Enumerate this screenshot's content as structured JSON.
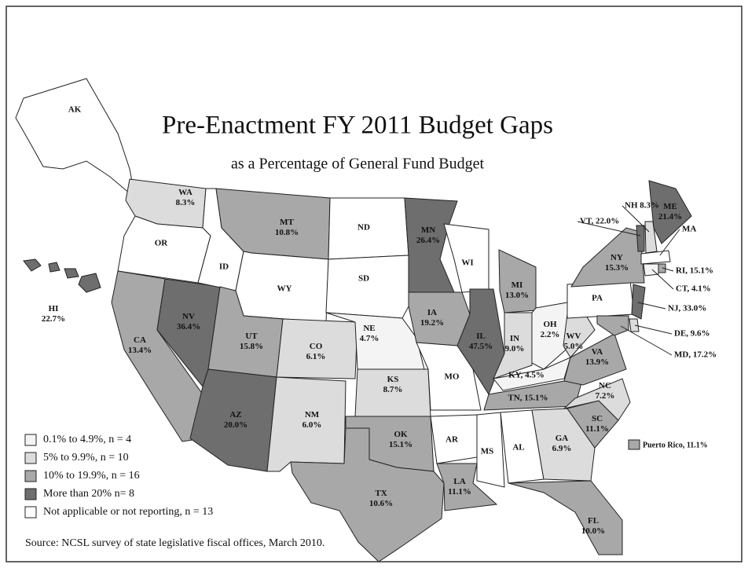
{
  "header": {
    "title": "Pre-Enactment FY 2011 Budget Gaps",
    "subtitle": "as a Percentage of General Fund Budget"
  },
  "states": [
    {
      "label": [
        "AK"
      ],
      "color": "#ffffff"
    },
    {
      "label": [
        "WA",
        "8.3%"
      ],
      "color": "#dcdcdc"
    },
    {
      "label": [
        "OR"
      ],
      "color": "#ffffff"
    },
    {
      "label": [
        "CA",
        "13.4%"
      ],
      "color": "#a8a8a8"
    },
    {
      "label": [
        "NV",
        "36.4%"
      ],
      "color": "#6e6e6e"
    },
    {
      "label": [
        "ID"
      ],
      "color": "#ffffff"
    },
    {
      "label": [
        "MT",
        "10.8%"
      ],
      "color": "#a8a8a8"
    },
    {
      "label": [
        "WY"
      ],
      "color": "#ffffff"
    },
    {
      "label": [
        "UT",
        "15.8%"
      ],
      "color": "#a8a8a8"
    },
    {
      "label": [
        "AZ",
        "20.0%"
      ],
      "color": "#6e6e6e"
    },
    {
      "label": [
        "CO",
        "6.1%"
      ],
      "color": "#dcdcdc"
    },
    {
      "label": [
        "NM",
        "6.0%"
      ],
      "color": "#dcdcdc"
    },
    {
      "label": [
        "ND"
      ],
      "color": "#ffffff"
    },
    {
      "label": [
        "SD"
      ],
      "color": "#ffffff"
    },
    {
      "label": [
        "NE",
        "4.7%"
      ],
      "color": "#f4f4f4"
    },
    {
      "label": [
        "KS",
        "8.7%"
      ],
      "color": "#dcdcdc"
    },
    {
      "label": [
        "OK",
        "15.1%"
      ],
      "color": "#a8a8a8"
    },
    {
      "label": [
        "TX",
        "10.6%"
      ],
      "color": "#a8a8a8"
    },
    {
      "label": [
        "MN",
        "26.4%"
      ],
      "color": "#6e6e6e"
    },
    {
      "label": [
        "IA",
        "19.2%"
      ],
      "color": "#a8a8a8"
    },
    {
      "label": [
        "MO"
      ],
      "color": "#ffffff"
    },
    {
      "label": [
        "AR"
      ],
      "color": "#ffffff"
    },
    {
      "label": [
        "LA",
        "11.1%"
      ],
      "color": "#a8a8a8"
    },
    {
      "label": [
        "WI"
      ],
      "color": "#ffffff"
    },
    {
      "label": [
        "IL",
        "47.5%"
      ],
      "color": "#6e6e6e"
    },
    {
      "label": [
        "MI",
        "13.0%"
      ],
      "color": "#a8a8a8"
    },
    {
      "label": [
        "IN",
        "9.0%"
      ],
      "color": "#dcdcdc"
    },
    {
      "label": [
        "OH",
        "2.2%"
      ],
      "color": "#f4f4f4"
    },
    {
      "label": [
        "KY, 4.5%"
      ],
      "color": "#f4f4f4"
    },
    {
      "label": [
        "TN, 15.1%"
      ],
      "color": "#a8a8a8"
    },
    {
      "label": [
        "MS"
      ],
      "color": "#ffffff"
    },
    {
      "label": [
        "AL"
      ],
      "color": "#ffffff"
    },
    {
      "label": [
        "GA",
        "6.9%"
      ],
      "color": "#dcdcdc"
    },
    {
      "label": [
        "FL",
        "10.0%"
      ],
      "color": "#a8a8a8"
    },
    {
      "label": [
        "SC",
        "11.1%"
      ],
      "color": "#a8a8a8"
    },
    {
      "label": [
        "NC",
        "7.2%"
      ],
      "color": "#dcdcdc"
    },
    {
      "label": [
        "VA",
        "13.9%"
      ],
      "color": "#a8a8a8"
    },
    {
      "label": [
        "WV",
        "5.0%"
      ],
      "color": "#dcdcdc"
    },
    {
      "label": [
        "PA"
      ],
      "color": "#ffffff"
    },
    {
      "label": [
        "NY",
        "15.3%"
      ],
      "color": "#a8a8a8"
    },
    {
      "label": [
        "NJ, 33.0%"
      ],
      "color": "#6e6e6e"
    },
    {
      "label": [
        "DE, 9.6%"
      ],
      "color": "#dcdcdc"
    },
    {
      "label": [
        "MD, 17.2%"
      ],
      "color": "#a8a8a8"
    },
    {
      "label": [
        "CT, 4.1%"
      ],
      "color": "#f4f4f4"
    },
    {
      "label": [
        "RI, 15.1%"
      ],
      "color": "#a8a8a8"
    },
    {
      "label": [
        "MA"
      ],
      "color": "#ffffff"
    },
    {
      "label": [
        "NH 8.3%"
      ],
      "color": "#dcdcdc"
    },
    {
      "label": [
        "VT, 22.0%"
      ],
      "color": "#6e6e6e"
    },
    {
      "label": [
        "ME",
        "21.4%"
      ],
      "color": "#6e6e6e"
    },
    {
      "label": [
        "HI",
        "22.7%"
      ],
      "color": "#6e6e6e"
    }
  ],
  "puerto_rico": {
    "label": "Puerto Rico, 11.1%",
    "color": "#a8a8a8"
  },
  "legend": [
    {
      "label": "0.1% to 4.9%, n = 4",
      "color": "#f4f4f4"
    },
    {
      "label": "5% to 9.9%, n = 10",
      "color": "#dcdcdc"
    },
    {
      "label": "10% to 19.9%, n = 16",
      "color": "#a8a8a8"
    },
    {
      "label": "More than 20% n= 8",
      "color": "#6e6e6e"
    },
    {
      "label": "Not applicable or not reporting, n = 13",
      "color": "#ffffff"
    }
  ],
  "source": "Source: NCSL survey of state legislative fiscal offices, March 2010."
}
